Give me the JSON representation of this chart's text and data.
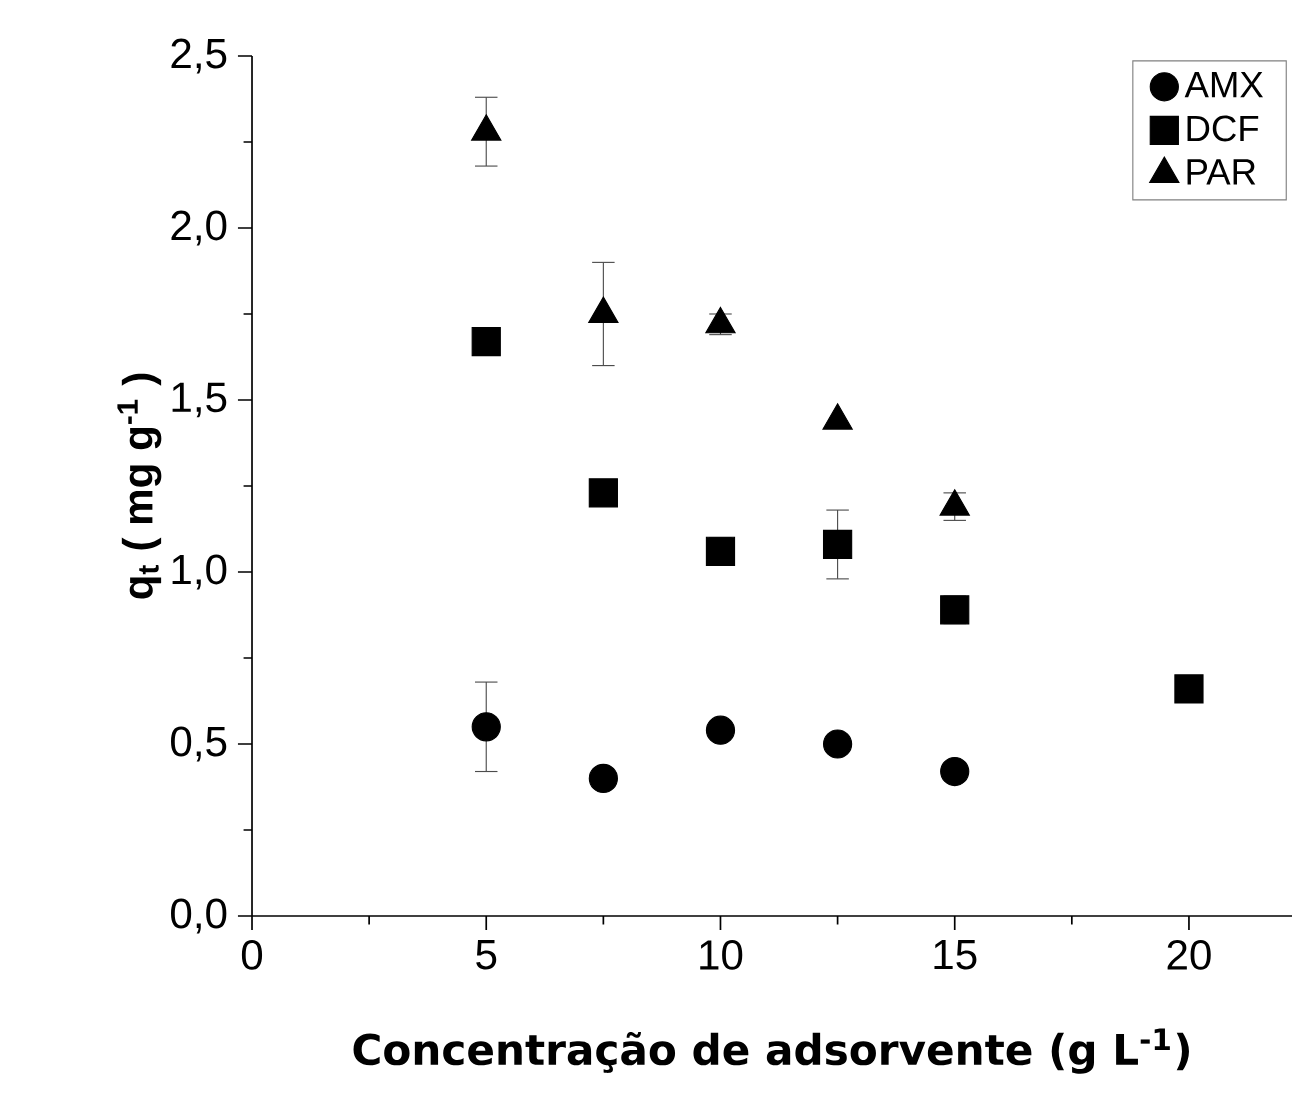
{
  "chart_data": {
    "type": "scatter",
    "xlabel": "Concentração de adsorvente (g L$^{-1}$)",
    "ylabel": "q$_{t}$ ( mg g$^{-1}$ )",
    "x": [
      5,
      7.5,
      10,
      12.5,
      15,
      20
    ],
    "series": [
      {
        "name": "AMX",
        "color": "#000000",
        "marker": "circle",
        "values": [
          0.55,
          0.4,
          0.54,
          0.5,
          0.42,
          null
        ],
        "errors": [
          0.13,
          null,
          0.02,
          null,
          0.02,
          null
        ]
      },
      {
        "name": "DCF",
        "color": "#000000",
        "marker": "square",
        "values": [
          1.67,
          1.23,
          1.06,
          1.08,
          0.89,
          0.66
        ],
        "errors": [
          null,
          null,
          0.04,
          0.1,
          0.04,
          null
        ]
      },
      {
        "name": "PAR",
        "color": "#000000",
        "marker": "triangle",
        "values": [
          2.28,
          1.75,
          1.72,
          1.44,
          1.19,
          null
        ],
        "errors": [
          0.1,
          0.15,
          0.03,
          null,
          0.04,
          null
        ]
      }
    ],
    "xlim": [
      0,
      22.2
    ],
    "xticks": [
      0,
      5,
      10,
      15,
      20
    ],
    "ylim": [
      0,
      2.5
    ],
    "yticks": [
      {
        "value": 0,
        "label": "0,0"
      },
      {
        "value": 0.5,
        "label": "0,5"
      },
      {
        "value": 1,
        "label": "1,0"
      },
      {
        "value": 1.5,
        "label": "1,5"
      },
      {
        "value": 2,
        "label": "2,0"
      },
      {
        "value": 2.5,
        "label": "2,5"
      }
    ],
    "legend": "top right",
    "grid": false
  }
}
